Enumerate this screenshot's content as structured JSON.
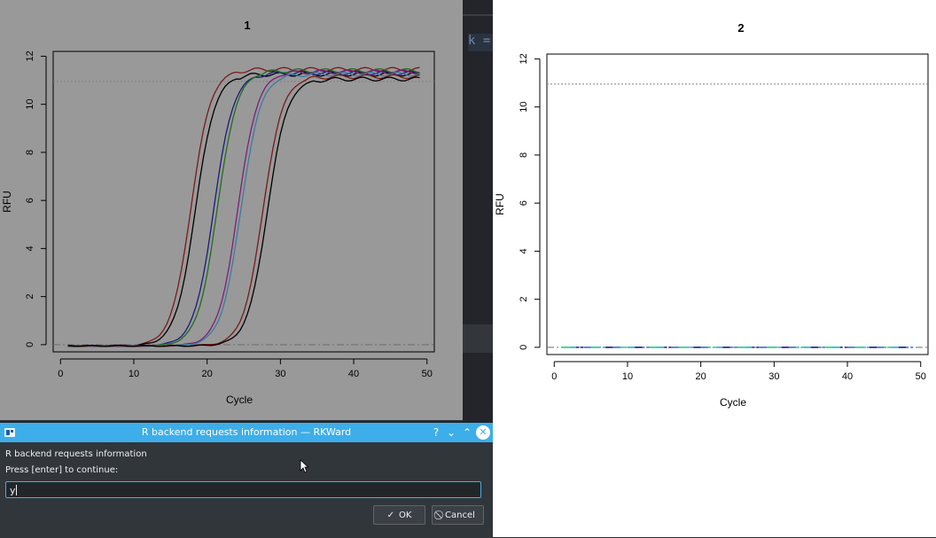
{
  "plots": [
    {
      "title": "1",
      "xlabel": "Cycle",
      "ylabel": "RFU",
      "xticks": [
        "0",
        "10",
        "20",
        "30",
        "40",
        "50"
      ],
      "yticks": [
        "0",
        "2",
        "4",
        "6",
        "8",
        "10",
        "12"
      ]
    },
    {
      "title": "2",
      "xlabel": "Cycle",
      "ylabel": "RFU",
      "xticks": [
        "0",
        "10",
        "20",
        "30",
        "40",
        "50"
      ],
      "yticks": [
        "0",
        "2",
        "4",
        "6",
        "8",
        "10",
        "12"
      ]
    }
  ],
  "chart_data": [
    {
      "type": "line",
      "title": "1",
      "xlabel": "Cycle",
      "ylabel": "RFU",
      "xlim": [
        0,
        50
      ],
      "ylim": [
        -0.3,
        12.2
      ],
      "grid": false,
      "reference_lines": [
        {
          "y": 10.95,
          "style": "dotted"
        },
        {
          "y": 0,
          "style": "dashdot"
        }
      ],
      "series": [
        {
          "color": "#7a1a1a",
          "midpoint": 17.8,
          "plateau": 11.5
        },
        {
          "color": "#000000",
          "midpoint": 18.4,
          "plateau": 11.3
        },
        {
          "color": "#1a1a80",
          "midpoint": 20.9,
          "plateau": 11.35
        },
        {
          "color": "#1e6e1e",
          "midpoint": 21.4,
          "plateau": 11.45
        },
        {
          "color": "#7a1f7a",
          "midpoint": 24.2,
          "plateau": 11.4
        },
        {
          "color": "#3c7aa0",
          "midpoint": 24.6,
          "plateau": 11.3
        },
        {
          "color": "#7a1a1a",
          "midpoint": 27.6,
          "plateau": 11.2
        },
        {
          "color": "#000000",
          "midpoint": 28.2,
          "plateau": 11.1
        }
      ]
    },
    {
      "type": "line",
      "title": "2",
      "xlabel": "Cycle",
      "ylabel": "RFU",
      "xlim": [
        0,
        50
      ],
      "ylim": [
        -0.3,
        12.2
      ],
      "grid": false,
      "reference_lines": [
        {
          "y": 10.95,
          "style": "dotted"
        },
        {
          "y": 0,
          "style": "dashdot"
        }
      ],
      "series": [
        {
          "colors": [
            "#3a6fd8",
            "#1bd07a",
            "#19b6c9",
            "#1a1a80"
          ],
          "value": 0
        }
      ]
    }
  ],
  "dialog": {
    "title": "R backend requests information — RKWard",
    "heading": "R backend requests information",
    "prompt": "Press [enter] to continue:",
    "input_value": "y",
    "ok_label": "OK",
    "cancel_label": "Cancel",
    "help_glyph": "?",
    "minimize_glyph": "⌄",
    "maximize_glyph": "⌃",
    "close_glyph": "✕"
  },
  "background": {
    "editor_fragment": "k ="
  }
}
